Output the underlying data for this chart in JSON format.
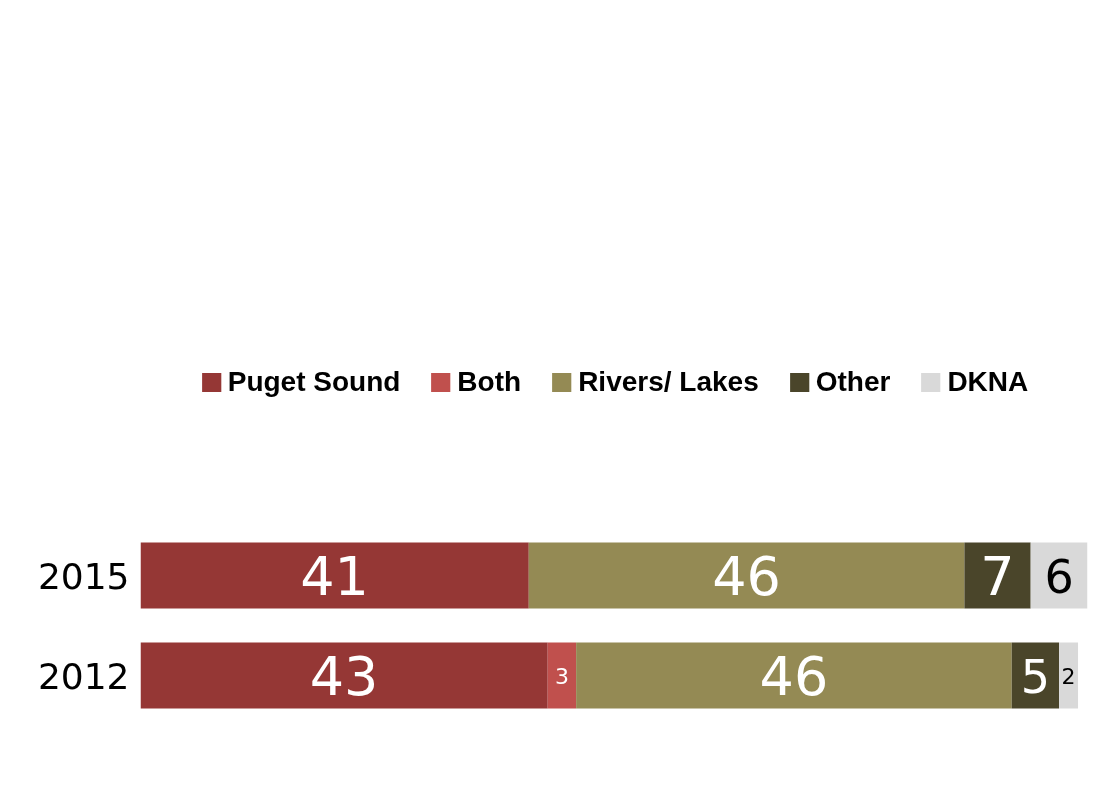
{
  "chart_data": {
    "type": "bar",
    "orientation": "horizontal",
    "stacked": true,
    "data_labels": true,
    "legend": "top",
    "grid": false,
    "categories": [
      "2015",
      "2012"
    ],
    "series": [
      {
        "name": "Puget Sound",
        "color": "#953735",
        "values": [
          41,
          43
        ]
      },
      {
        "name": "Both",
        "color": "#c0504d",
        "values": [
          null,
          3
        ]
      },
      {
        "name": "Rivers/ Lakes",
        "color": "#948a54",
        "values": [
          46,
          46
        ]
      },
      {
        "name": "Other",
        "color": "#4a452a",
        "values": [
          7,
          5
        ]
      },
      {
        "name": "DKNA",
        "color": "#d9d9d9",
        "values": [
          6,
          2
        ]
      }
    ]
  }
}
